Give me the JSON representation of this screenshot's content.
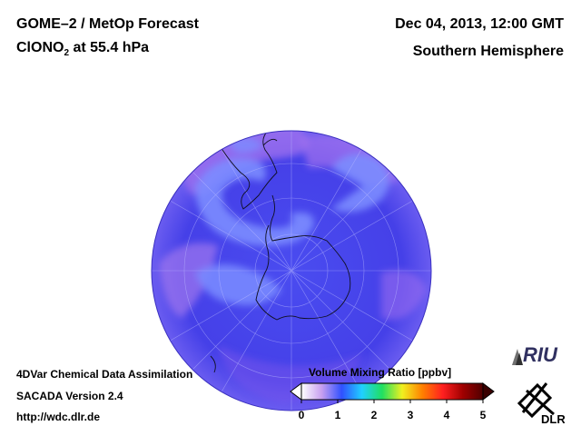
{
  "header": {
    "title_line1": "GOME–2 / MetOp Forecast",
    "species_prefix": "ClONO",
    "species_subscript": "2",
    "species_suffix": " at 55.4 hPa",
    "date": "Dec 04, 2013, 12:00 GMT",
    "region": "Southern Hemisphere"
  },
  "footer": {
    "line1": "4DVar Chemical Data Assimilation",
    "line2": "SACADA Version 2.4",
    "line3": "http://wdc.dlr.de"
  },
  "colorbar": {
    "title": "Volume Mixing Ratio [ppbv]",
    "ticks": [
      "0",
      "1",
      "2",
      "3",
      "4",
      "5"
    ],
    "min": 0,
    "max": 5,
    "colors": [
      "#ffffff",
      "#c8a0f0",
      "#3050ff",
      "#20d0ff",
      "#20e060",
      "#f0f020",
      "#ff8000",
      "#ff2020",
      "#a00000",
      "#500000"
    ]
  },
  "logos": {
    "riu_text": "RIU",
    "dlr_text": "DLR"
  },
  "map": {
    "projection": "orthographic, south pole centered",
    "background_color": "#4a3ee8",
    "low_color": "#7c8cff",
    "high_color": "#b480f0"
  }
}
